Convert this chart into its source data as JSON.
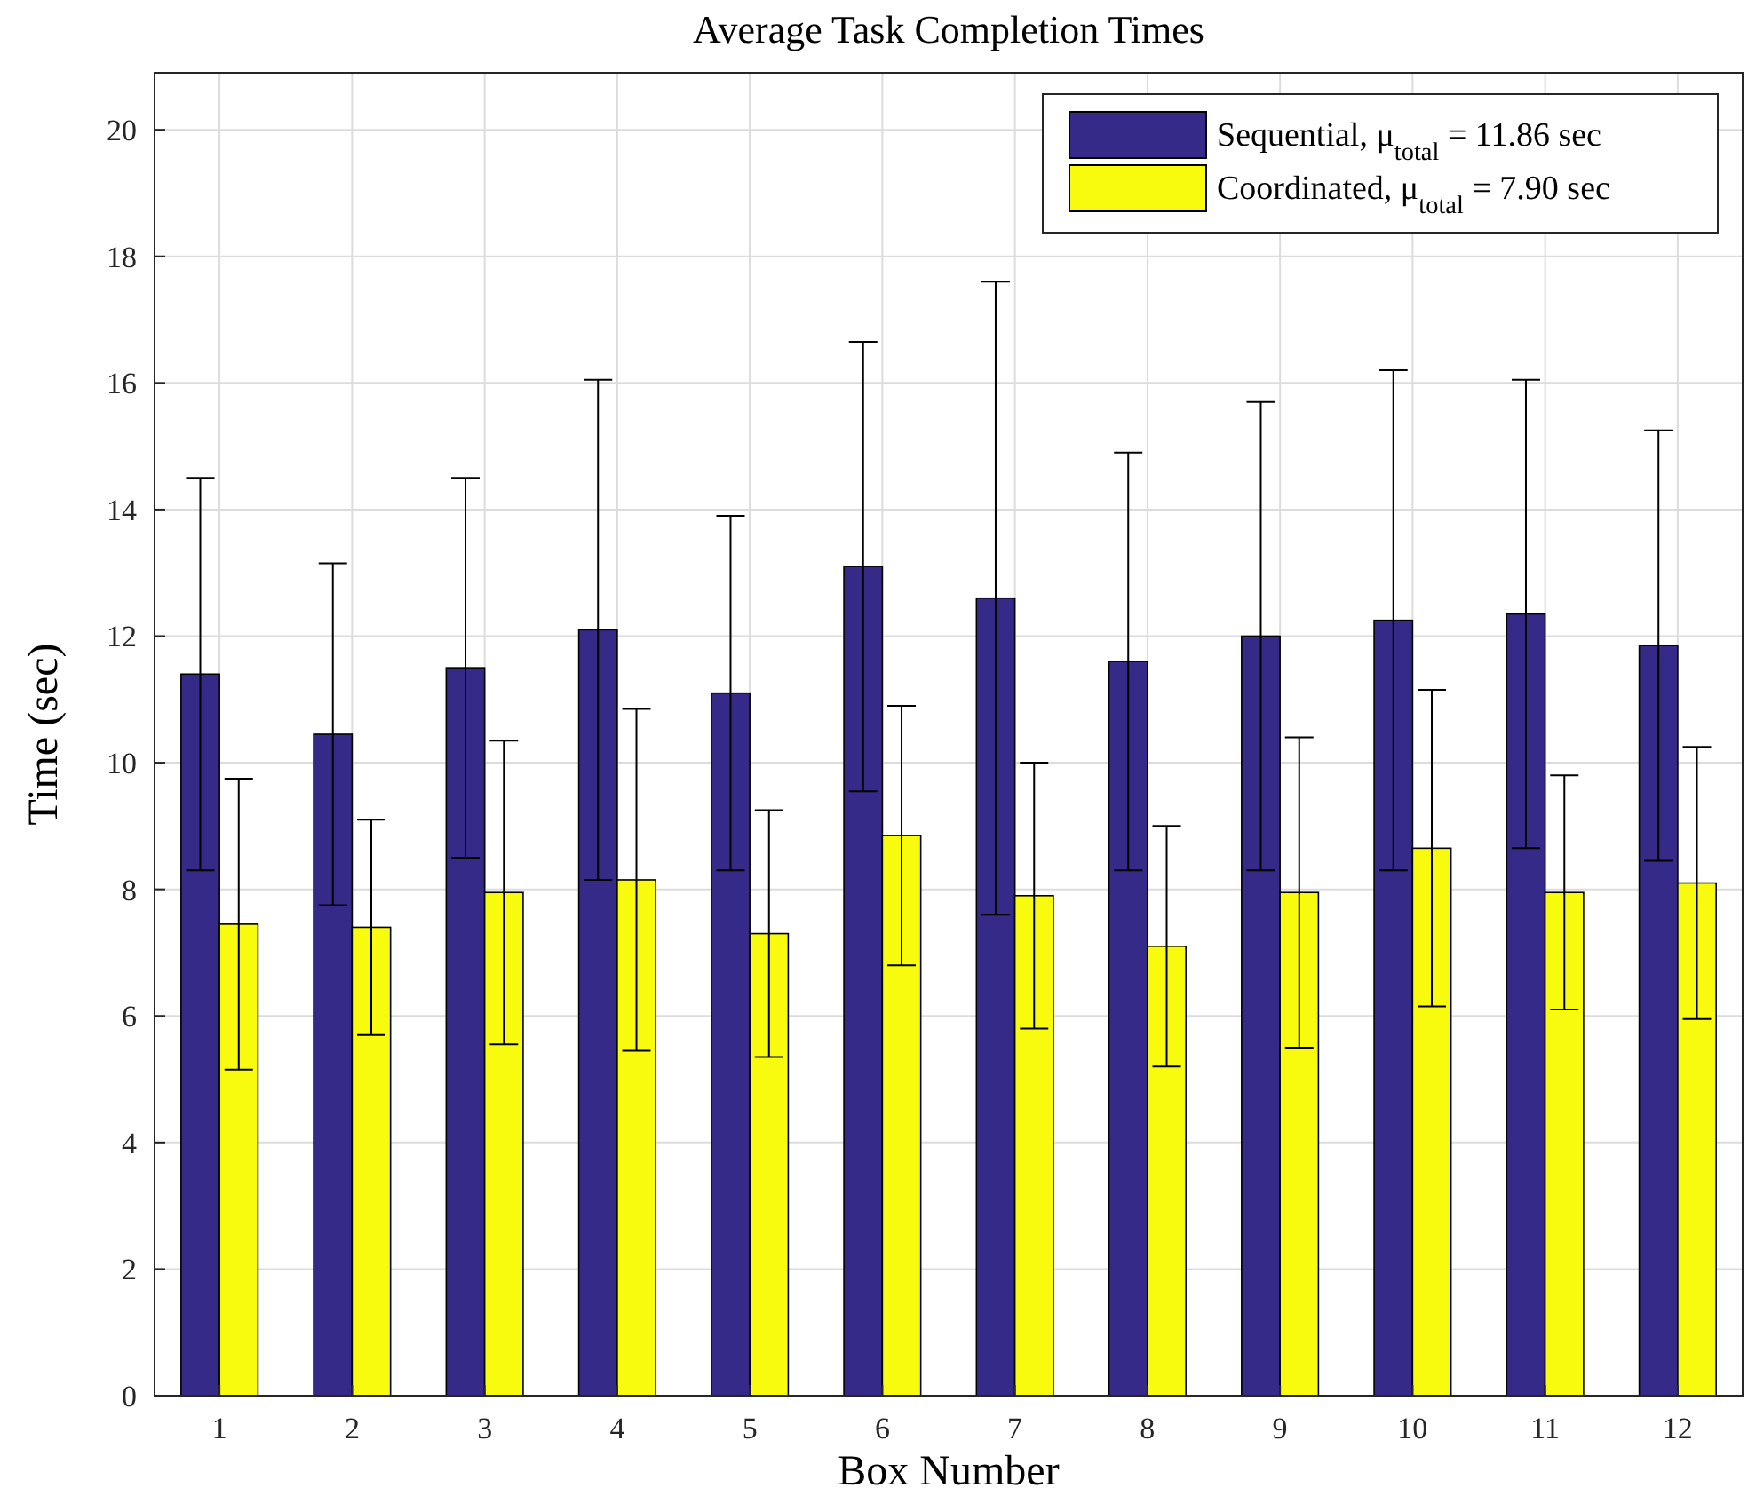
{
  "chart_data": {
    "type": "bar",
    "title": "Average Task Completion Times",
    "xlabel": "Box Number",
    "ylabel": "Time (sec)",
    "categories": [
      "1",
      "2",
      "3",
      "4",
      "5",
      "6",
      "7",
      "8",
      "9",
      "10",
      "11",
      "12"
    ],
    "series": [
      {
        "name": "Sequential, μ$_{total}$ = 11.86 sec",
        "color": "#352a87",
        "values": [
          11.4,
          10.45,
          11.5,
          12.1,
          11.1,
          13.1,
          12.6,
          11.6,
          12.0,
          12.25,
          12.35,
          11.85
        ],
        "errors": [
          3.1,
          2.7,
          3.0,
          3.95,
          2.8,
          3.55,
          5.0,
          3.3,
          3.7,
          3.95,
          3.7,
          3.4
        ]
      },
      {
        "name": "Coordinated, μ$_{total}$ = 7.90 sec",
        "color": "#f9fb0e",
        "values": [
          7.45,
          7.4,
          7.95,
          8.15,
          7.3,
          8.85,
          7.9,
          7.1,
          7.95,
          8.65,
          7.95,
          8.1
        ],
        "errors": [
          2.3,
          1.7,
          2.4,
          2.7,
          1.95,
          2.05,
          2.1,
          1.9,
          2.45,
          2.5,
          1.85,
          2.15
        ]
      }
    ],
    "ylim": [
      0,
      20.9
    ],
    "yticks": [
      0,
      2,
      4,
      6,
      8,
      10,
      12,
      14,
      16,
      18,
      20
    ],
    "grid": true,
    "legend": "top right"
  }
}
